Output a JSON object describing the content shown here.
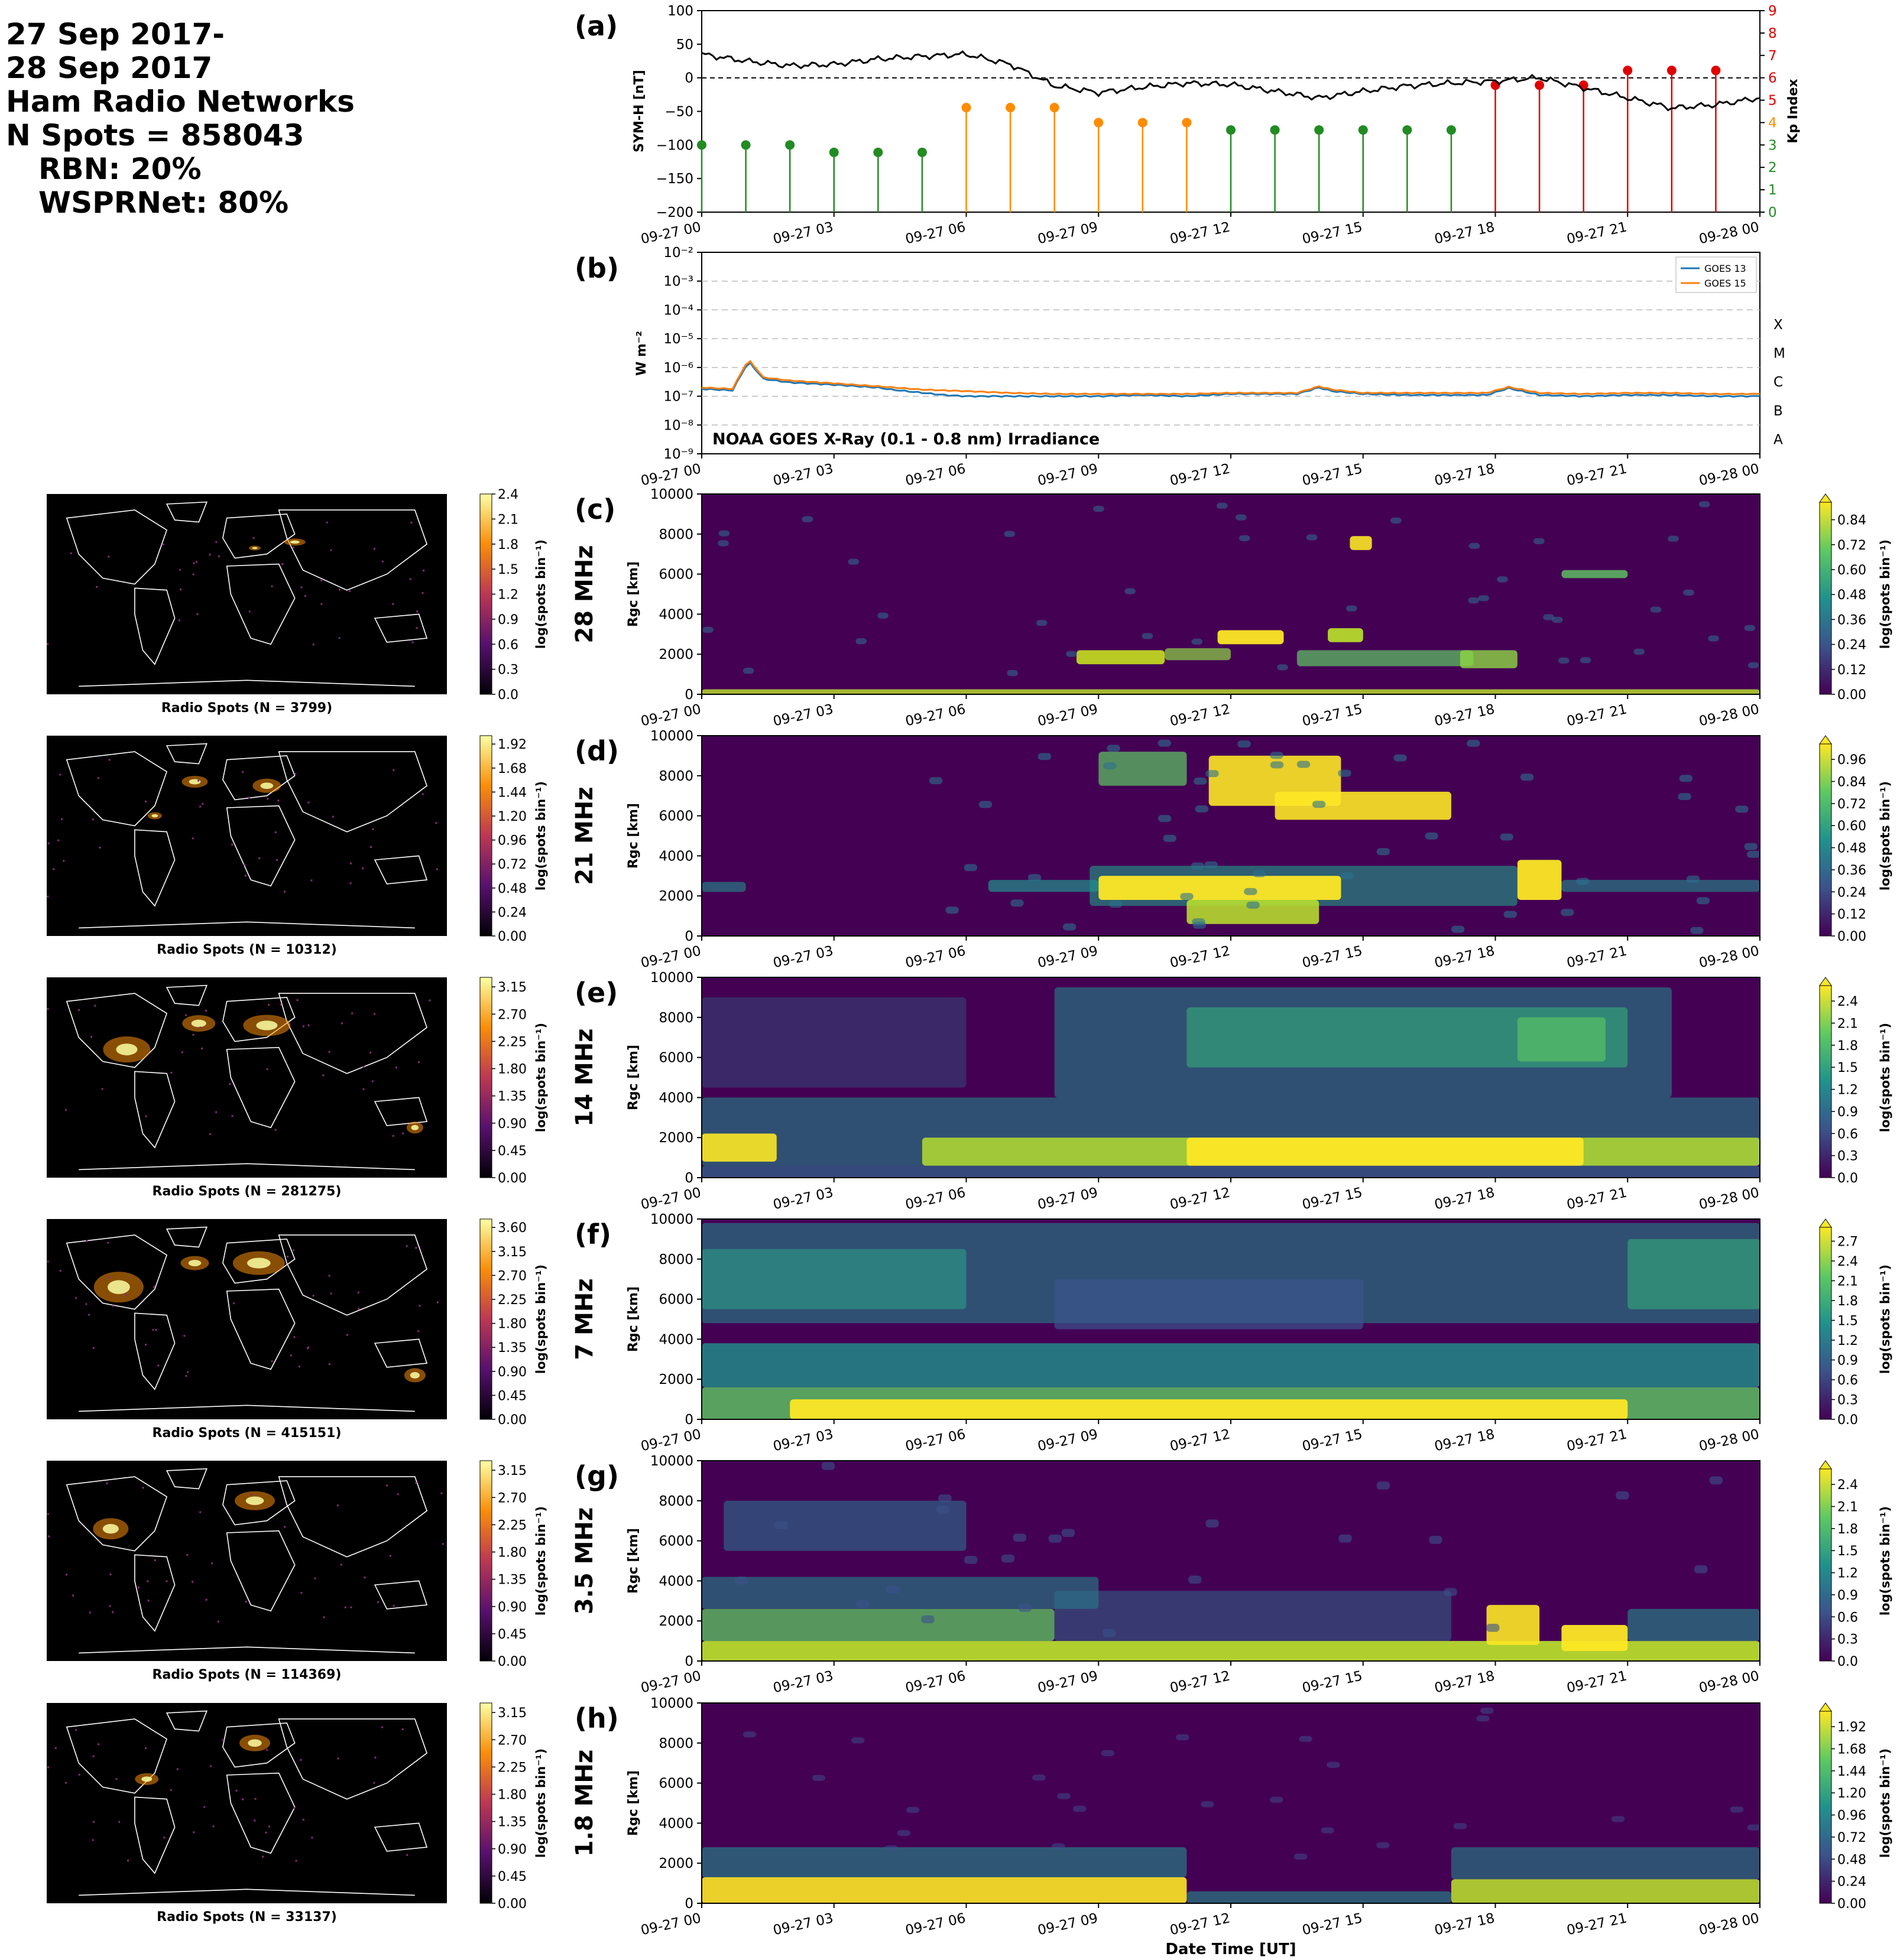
{
  "header": {
    "lines": [
      "27 Sep 2017-",
      "28 Sep 2017",
      "Ham Radio Networks",
      "N Spots = 858043"
    ],
    "sub_lines": [
      "RBN: 20%",
      "WSPRNet: 80%"
    ]
  },
  "colors": {
    "symh_line": "#000000",
    "kp_quiet": "#228b22",
    "kp_moderate": "#ff8c00",
    "kp_storm": "#e00000",
    "goes13": "#1f77b4",
    "goes15": "#ff7f0e",
    "grid": "#bbbbbb",
    "map_background": "#000000",
    "coastline": "#ffffff"
  },
  "x_axis": {
    "tick_labels": [
      "09-27 00",
      "09-27 03",
      "09-27 06",
      "09-27 09",
      "09-27 12",
      "09-27 15",
      "09-27 18",
      "09-27 21",
      "09-28 00"
    ],
    "xlabel": "Date Time [UT]"
  },
  "chart_data": [
    {
      "type": "line",
      "panel": "(a)",
      "ylabel": "SYM-H [nT]",
      "ylim": [
        -200,
        100
      ],
      "y_ticks": [
        "100",
        "50",
        "0",
        "−50",
        "−100",
        "−150",
        "−200"
      ],
      "zero_line": "dashed",
      "series": [
        {
          "hours": [
            0,
            1,
            2,
            3,
            4,
            5,
            6,
            7,
            8,
            9,
            10,
            11,
            12,
            13,
            14,
            15,
            16,
            17,
            18,
            19,
            20,
            21,
            22,
            23,
            24
          ],
          "values": [
            35,
            25,
            18,
            20,
            28,
            32,
            35,
            20,
            -12,
            -22,
            -14,
            -8,
            -10,
            -20,
            -30,
            -20,
            -12,
            -8,
            -5,
            0,
            -15,
            -30,
            -45,
            -40,
            -30
          ]
        }
      ],
      "secondary_axis": {
        "ylabel": "Kp Index",
        "ylim": [
          0,
          9
        ],
        "y_ticks": [
          "0",
          "1",
          "2",
          "3",
          "4",
          "5",
          "6",
          "7",
          "8",
          "9"
        ],
        "type": "stem",
        "hours": [
          0,
          1,
          2,
          3,
          4,
          5,
          6,
          7,
          8,
          9,
          10,
          11,
          12,
          13,
          14,
          15,
          16,
          17,
          18,
          19,
          20,
          21,
          22,
          23
        ],
        "values": [
          3,
          3,
          3,
          2.67,
          2.67,
          2.67,
          4.67,
          4.67,
          4.67,
          4,
          4,
          4,
          3.67,
          3.67,
          3.67,
          3.67,
          3.67,
          3.67,
          5.67,
          5.67,
          5.67,
          6.33,
          6.33,
          6.33
        ]
      }
    },
    {
      "type": "line",
      "panel": "(b)",
      "ylabel": "W m⁻²",
      "y_scale": "log",
      "ylim": [
        1e-09,
        0.01
      ],
      "y_ticks": [
        "10⁻²",
        "10⁻³",
        "10⁻⁴",
        "10⁻⁵",
        "10⁻⁶",
        "10⁻⁷",
        "10⁻⁸",
        "10⁻⁹"
      ],
      "class_labels": [
        "X",
        "M",
        "C",
        "B",
        "A"
      ],
      "annotation": "NOAA GOES X-Ray (0.1 - 0.8 nm) Irradiance",
      "legend_position": "top-right",
      "series": [
        {
          "name": "GOES 13",
          "hours": [
            0,
            0.7,
            1,
            1.1,
            1.4,
            2,
            3,
            4,
            4.3,
            5.5,
            6,
            7,
            8,
            9,
            10,
            11,
            12,
            13,
            13.5,
            14,
            14.3,
            15,
            16,
            17,
            17.8,
            18.3,
            19,
            20,
            21,
            22,
            23,
            24
          ],
          "values": [
            1.8e-07,
            1.6e-07,
            1.1e-06,
            1.4e-06,
            4e-07,
            3e-07,
            2.5e-07,
            2e-07,
            1.7e-07,
            1.1e-07,
            1e-07,
            1e-07,
            1e-07,
            1e-07,
            1.1e-07,
            1e-07,
            1.2e-07,
            1.2e-07,
            1.2e-07,
            2e-07,
            1.5e-07,
            1.2e-07,
            1.1e-07,
            1.1e-07,
            1.1e-07,
            1.9e-07,
            1.1e-07,
            1e-07,
            1.1e-07,
            1.1e-07,
            1e-07,
            1e-07
          ]
        },
        {
          "name": "GOES 15",
          "hours": [
            0,
            0.7,
            1,
            1.1,
            1.4,
            2,
            3,
            4,
            5,
            6,
            7,
            8,
            9,
            10,
            11,
            12,
            13,
            13.5,
            14,
            14.3,
            15,
            16,
            17,
            17.8,
            18.3,
            19,
            20,
            21,
            22,
            23,
            24
          ],
          "values": [
            2e-07,
            1.8e-07,
            1.3e-06,
            1.6e-06,
            4.5e-07,
            3.5e-07,
            2.8e-07,
            2.2e-07,
            1.7e-07,
            1.5e-07,
            1.3e-07,
            1.2e-07,
            1.2e-07,
            1.2e-07,
            1.2e-07,
            1.3e-07,
            1.3e-07,
            1.3e-07,
            2.2e-07,
            1.7e-07,
            1.3e-07,
            1.3e-07,
            1.3e-07,
            1.3e-07,
            2.1e-07,
            1.3e-07,
            1.2e-07,
            1.3e-07,
            1.3e-07,
            1.2e-07,
            1.2e-07
          ]
        }
      ]
    },
    {
      "type": "heatmap",
      "panel": "(c)",
      "band_label": "28 MHz",
      "ylabel": "Rgc [km]",
      "ylim": [
        0,
        10000
      ],
      "y_ticks": [
        "0",
        "2000",
        "4000",
        "6000",
        "8000",
        "10000"
      ],
      "colorbar_label": "log(spots bin⁻¹)",
      "colorbar_ticks": [
        "0.00",
        "0.12",
        "0.24",
        "0.36",
        "0.48",
        "0.60",
        "0.72",
        "0.84"
      ],
      "map_caption": "Radio Spots (N = 3799)",
      "map_colorbar_ticks": [
        "0.0",
        "0.3",
        "0.6",
        "0.9",
        "1.2",
        "1.5",
        "1.8",
        "2.1",
        "2.4"
      ]
    },
    {
      "type": "heatmap",
      "panel": "(d)",
      "band_label": "21 MHz",
      "ylabel": "Rgc [km]",
      "ylim": [
        0,
        10000
      ],
      "y_ticks": [
        "0",
        "2000",
        "4000",
        "6000",
        "8000",
        "10000"
      ],
      "colorbar_label": "log(spots bin⁻¹)",
      "colorbar_ticks": [
        "0.00",
        "0.12",
        "0.24",
        "0.36",
        "0.48",
        "0.60",
        "0.72",
        "0.84",
        "0.96"
      ],
      "map_caption": "Radio Spots (N = 10312)",
      "map_colorbar_ticks": [
        "0.00",
        "0.24",
        "0.48",
        "0.72",
        "0.96",
        "1.20",
        "1.44",
        "1.68",
        "1.92"
      ]
    },
    {
      "type": "heatmap",
      "panel": "(e)",
      "band_label": "14 MHz",
      "ylabel": "Rgc [km]",
      "ylim": [
        0,
        10000
      ],
      "y_ticks": [
        "0",
        "2000",
        "4000",
        "6000",
        "8000",
        "10000"
      ],
      "colorbar_label": "log(spots bin⁻¹)",
      "colorbar_ticks": [
        "0.0",
        "0.3",
        "0.6",
        "0.9",
        "1.2",
        "1.5",
        "1.8",
        "2.1",
        "2.4"
      ],
      "map_caption": "Radio Spots (N = 281275)",
      "map_colorbar_ticks": [
        "0.00",
        "0.45",
        "0.90",
        "1.35",
        "1.80",
        "2.25",
        "2.70",
        "3.15"
      ]
    },
    {
      "type": "heatmap",
      "panel": "(f)",
      "band_label": "7 MHz",
      "ylabel": "Rgc [km]",
      "ylim": [
        0,
        10000
      ],
      "y_ticks": [
        "0",
        "2000",
        "4000",
        "6000",
        "8000",
        "10000"
      ],
      "colorbar_label": "log(spots bin⁻¹)",
      "colorbar_ticks": [
        "0.0",
        "0.3",
        "0.6",
        "0.9",
        "1.2",
        "1.5",
        "1.8",
        "2.1",
        "2.4",
        "2.7"
      ],
      "map_caption": "Radio Spots (N = 415151)",
      "map_colorbar_ticks": [
        "0.00",
        "0.45",
        "0.90",
        "1.35",
        "1.80",
        "2.25",
        "2.70",
        "3.15",
        "3.60"
      ]
    },
    {
      "type": "heatmap",
      "panel": "(g)",
      "band_label": "3.5 MHz",
      "ylabel": "Rgc [km]",
      "ylim": [
        0,
        10000
      ],
      "y_ticks": [
        "0",
        "2000",
        "4000",
        "6000",
        "8000",
        "10000"
      ],
      "colorbar_label": "log(spots bin⁻¹)",
      "colorbar_ticks": [
        "0.0",
        "0.3",
        "0.6",
        "0.9",
        "1.2",
        "1.5",
        "1.8",
        "2.1",
        "2.4"
      ],
      "map_caption": "Radio Spots (N = 114369)",
      "map_colorbar_ticks": [
        "0.00",
        "0.45",
        "0.90",
        "1.35",
        "1.80",
        "2.25",
        "2.70",
        "3.15"
      ]
    },
    {
      "type": "heatmap",
      "panel": "(h)",
      "band_label": "1.8 MHz",
      "ylabel": "Rgc [km]",
      "ylim": [
        0,
        10000
      ],
      "y_ticks": [
        "0",
        "2000",
        "4000",
        "6000",
        "8000",
        "10000"
      ],
      "colorbar_label": "log(spots bin⁻¹)",
      "colorbar_ticks": [
        "0.00",
        "0.24",
        "0.48",
        "0.72",
        "0.96",
        "1.20",
        "1.44",
        "1.68",
        "1.92"
      ],
      "map_caption": "Radio Spots (N = 33137)",
      "map_colorbar_ticks": [
        "0.00",
        "0.45",
        "0.90",
        "1.35",
        "1.80",
        "2.25",
        "2.70",
        "3.15"
      ]
    }
  ]
}
